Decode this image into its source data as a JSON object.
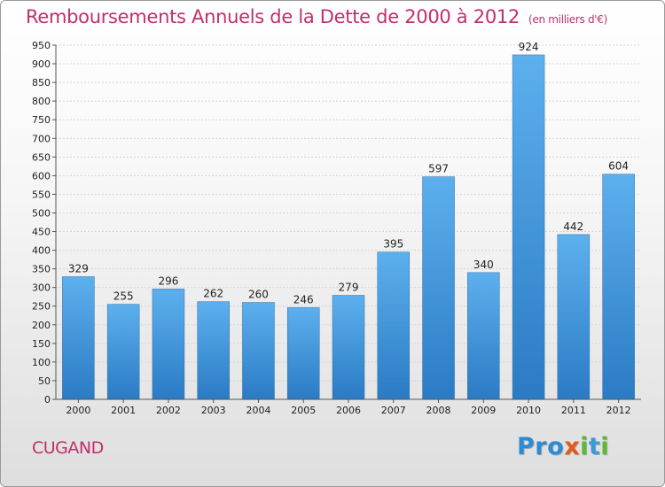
{
  "title": "Remboursements Annuels de la Dette de 2000 à 2012",
  "unit": "(en milliers d'€)",
  "commune": "CUGAND",
  "logo": {
    "letters": [
      "P",
      "r",
      "o",
      "x",
      "i",
      "t",
      "i"
    ],
    "colors": [
      "#2a8bd6",
      "#2a8bd6",
      "#2a8bd6",
      "#e05a1c",
      "#5fb832",
      "#3a9ad8",
      "#5fb832"
    ]
  },
  "chart_data": {
    "type": "bar",
    "categories": [
      "2000",
      "2001",
      "2002",
      "2003",
      "2004",
      "2005",
      "2006",
      "2007",
      "2008",
      "2009",
      "2010",
      "2011",
      "2012"
    ],
    "values": [
      329,
      255,
      296,
      262,
      260,
      246,
      279,
      395,
      597,
      340,
      924,
      442,
      604
    ],
    "ylim": [
      0,
      950
    ],
    "ytick_step": 50,
    "grid": true,
    "bar_color": "#4a9fe0"
  }
}
